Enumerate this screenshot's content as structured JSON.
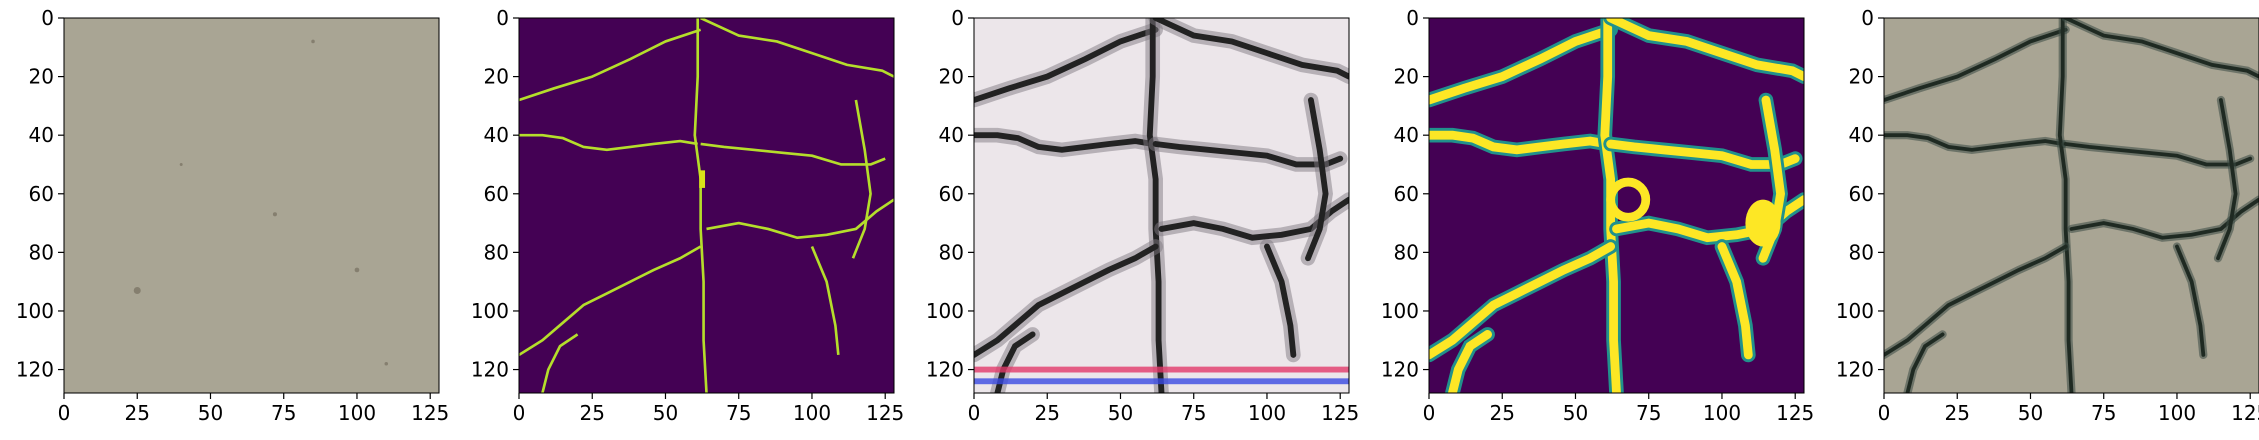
{
  "figure": {
    "panels": [
      {
        "id": "input-texture"
      },
      {
        "id": "crack-mask"
      },
      {
        "id": "generated-texture"
      },
      {
        "id": "soft-crack-map"
      },
      {
        "id": "composited-result"
      }
    ],
    "x_ticks": [
      "0",
      "25",
      "50",
      "75",
      "100",
      "125"
    ],
    "y_ticks": [
      "0",
      "20",
      "40",
      "60",
      "80",
      "100",
      "120"
    ],
    "image_size": [
      128,
      128
    ],
    "colors": {
      "stone": "#a9a594",
      "viridis_dark": "#440154",
      "viridis_teal": "#21918c",
      "viridis_yellow": "#fde725",
      "crack_dark": "#1f2a22"
    }
  }
}
